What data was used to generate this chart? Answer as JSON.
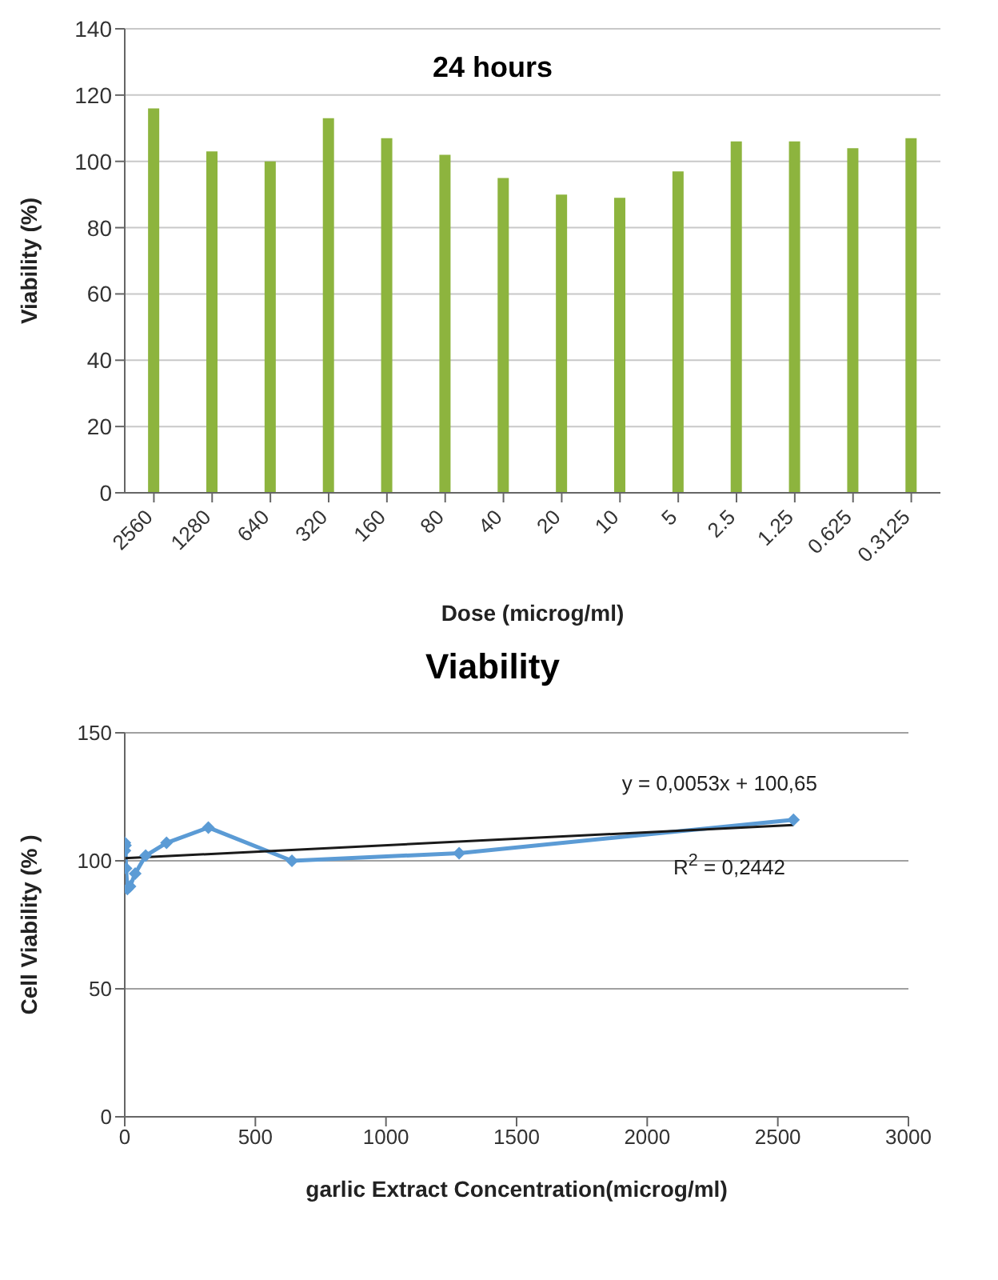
{
  "chart_data": [
    {
      "type": "bar",
      "title": "24 hours",
      "xlabel": "Dose (microg/ml)",
      "ylabel": "Viability (%)",
      "categories": [
        "2560",
        "1280",
        "640",
        "320",
        "160",
        "80",
        "40",
        "20",
        "10",
        "5",
        "2.5",
        "1.25",
        "0.625",
        "0.3125"
      ],
      "values": [
        116,
        103,
        100,
        113,
        107,
        102,
        95,
        90,
        89,
        97,
        106,
        106,
        104,
        107
      ],
      "color": "#8db43e",
      "ylim": [
        0,
        140
      ],
      "yticks": [
        0,
        20,
        40,
        60,
        80,
        100,
        120,
        140
      ],
      "grid": "y"
    },
    {
      "type": "line",
      "title": "Viability",
      "xlabel": "garlic Extract Concentration(microg/ml)",
      "ylabel": "Cell Viability (% )",
      "xlim": [
        0,
        3000
      ],
      "xticks": [
        0,
        500,
        1000,
        1500,
        2000,
        2500,
        3000
      ],
      "ylim": [
        0,
        150
      ],
      "yticks": [
        0,
        50,
        100,
        150
      ],
      "grid": "y",
      "marker": "diamond",
      "annotations": [
        "y = 0,0053x + 100,65",
        "R$^{2}$ = 0,2442"
      ],
      "series": [
        {
          "color": "#5b9bd5",
          "x": [
            0.3125,
            0.625,
            1.25,
            2.5,
            5,
            10,
            20,
            40,
            80,
            160,
            320,
            640,
            1280,
            2560
          ],
          "values": [
            107,
            104,
            106,
            106,
            97,
            89,
            90,
            95,
            102,
            107,
            113,
            100,
            103,
            116
          ]
        },
        {
          "color": "#1a1a1a",
          "marker": "none",
          "x": [
            0,
            2560
          ],
          "values": [
            101,
            114
          ]
        }
      ]
    }
  ]
}
